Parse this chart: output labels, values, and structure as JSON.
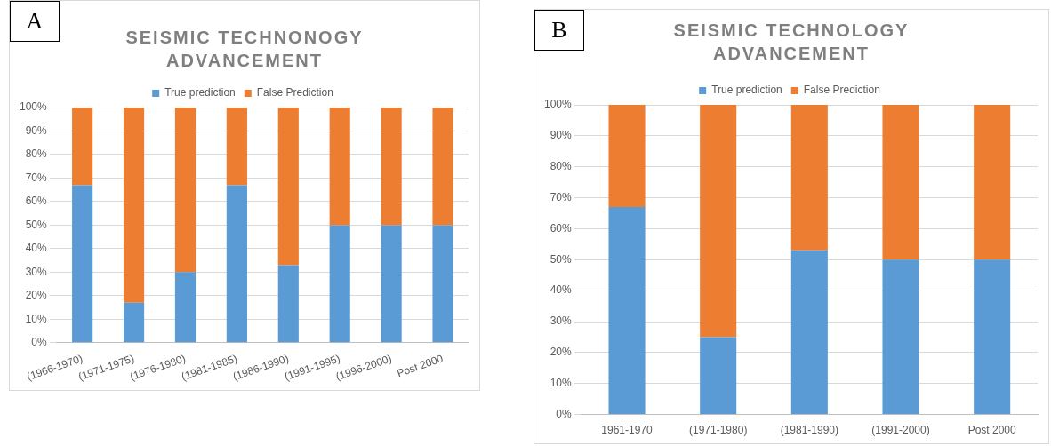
{
  "chart_data": [
    {
      "type": "bar",
      "title": "SEISMIC TECHNONOGY ADVANCEMENT",
      "annotations": [
        "A"
      ],
      "categories": [
        "(1966-1970)",
        "(1971-1975)",
        "(1976-1980)",
        "(1981-1985)",
        "(1986-1990)",
        "(1991-1995)",
        "(1996-2000)",
        "Post 2000"
      ],
      "series": [
        {
          "name": "True prediction",
          "color": "#5b9bd5",
          "values": [
            67,
            17,
            30,
            67,
            33,
            50,
            50,
            50
          ]
        },
        {
          "name": "False Prediction",
          "color": "#ed7d31",
          "values": [
            33,
            83,
            70,
            33,
            67,
            50,
            50,
            50
          ]
        }
      ],
      "stacked": true,
      "ylim": [
        0,
        100
      ],
      "yticks": [
        {
          "value": 0,
          "label": "0%"
        },
        {
          "value": 10,
          "label": "10%"
        },
        {
          "value": 20,
          "label": "20%"
        },
        {
          "value": 30,
          "label": "30%"
        },
        {
          "value": 40,
          "label": "40%"
        },
        {
          "value": 50,
          "label": "50%"
        },
        {
          "value": 60,
          "label": "60%"
        },
        {
          "value": 70,
          "label": "70%"
        },
        {
          "value": 80,
          "label": "80%"
        },
        {
          "value": 90,
          "label": "90%"
        },
        {
          "value": 100,
          "label": "100%"
        }
      ],
      "grid": "y",
      "legend": "top"
    },
    {
      "type": "bar",
      "title": "SEISMIC TECHNOLOGY ADVANCEMENT",
      "annotations": [
        "B"
      ],
      "categories": [
        "1961-1970",
        "(1971-1980)",
        "(1981-1990)",
        "(1991-2000)",
        "Post 2000"
      ],
      "series": [
        {
          "name": "True prediction",
          "color": "#5b9bd5",
          "values": [
            67,
            25,
            53,
            50,
            50
          ]
        },
        {
          "name": "False Prediction",
          "color": "#ed7d31",
          "values": [
            33,
            75,
            47,
            50,
            50
          ]
        }
      ],
      "stacked": true,
      "ylim": [
        0,
        100
      ],
      "yticks": [
        {
          "value": 0,
          "label": "0%"
        },
        {
          "value": 10,
          "label": "10%"
        },
        {
          "value": 20,
          "label": "20%"
        },
        {
          "value": 30,
          "label": "30%"
        },
        {
          "value": 40,
          "label": "40%"
        },
        {
          "value": 50,
          "label": "50%"
        },
        {
          "value": 60,
          "label": "60%"
        },
        {
          "value": 70,
          "label": "70%"
        },
        {
          "value": 80,
          "label": "80%"
        },
        {
          "value": 90,
          "label": "90%"
        },
        {
          "value": 100,
          "label": "100%"
        }
      ],
      "grid": "y",
      "legend": "top"
    }
  ]
}
